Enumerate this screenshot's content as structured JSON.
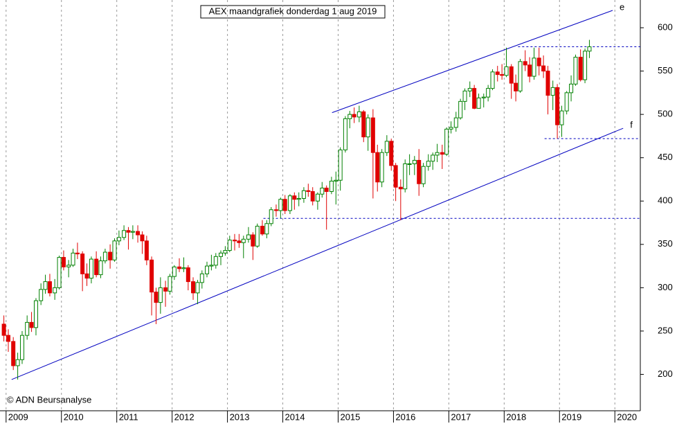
{
  "chart_data": {
    "type": "candlestick",
    "title": "AEX maandgrafiek donderdag 1 aug 2019",
    "copyright": "© ADN Beursanalyse",
    "up_color": "#008000",
    "down_color": "#e00000",
    "line_color": "#0000c0",
    "x": [
      2008.96,
      2009.04,
      2009.13,
      2009.21,
      2009.29,
      2009.38,
      2009.46,
      2009.54,
      2009.63,
      2009.71,
      2009.79,
      2009.88,
      2009.96,
      2010.04,
      2010.13,
      2010.21,
      2010.29,
      2010.38,
      2010.46,
      2010.54,
      2010.63,
      2010.71,
      2010.79,
      2010.88,
      2010.96,
      2011.04,
      2011.13,
      2011.21,
      2011.29,
      2011.38,
      2011.46,
      2011.54,
      2011.63,
      2011.71,
      2011.79,
      2011.88,
      2011.96,
      2012.04,
      2012.13,
      2012.21,
      2012.29,
      2012.38,
      2012.46,
      2012.54,
      2012.63,
      2012.71,
      2012.79,
      2012.88,
      2012.96,
      2013.04,
      2013.13,
      2013.21,
      2013.29,
      2013.38,
      2013.46,
      2013.54,
      2013.63,
      2013.71,
      2013.79,
      2013.88,
      2013.96,
      2014.04,
      2014.13,
      2014.21,
      2014.29,
      2014.38,
      2014.46,
      2014.54,
      2014.63,
      2014.71,
      2014.79,
      2014.88,
      2014.96,
      2015.04,
      2015.13,
      2015.21,
      2015.29,
      2015.38,
      2015.46,
      2015.54,
      2015.63,
      2015.71,
      2015.79,
      2015.88,
      2015.96,
      2016.04,
      2016.13,
      2016.21,
      2016.29,
      2016.38,
      2016.46,
      2016.54,
      2016.63,
      2016.71,
      2016.79,
      2016.88,
      2016.96,
      2017.04,
      2017.13,
      2017.21,
      2017.29,
      2017.38,
      2017.46,
      2017.54,
      2017.63,
      2017.71,
      2017.79,
      2017.88,
      2017.96,
      2018.04,
      2018.13,
      2018.21,
      2018.29,
      2018.38,
      2018.46,
      2018.54,
      2018.63,
      2018.71,
      2018.79,
      2018.88,
      2018.96,
      2019.04,
      2019.13,
      2019.21,
      2019.29,
      2019.38,
      2019.46,
      2019.54
    ],
    "open": [
      258,
      245,
      238,
      210,
      217,
      245,
      260,
      254,
      285,
      298,
      307,
      294,
      300,
      335,
      324,
      326,
      340,
      339,
      316,
      311,
      333,
      315,
      331,
      341,
      332,
      354,
      358,
      366,
      364,
      365,
      361,
      354,
      332,
      295,
      283,
      300,
      296,
      313,
      324,
      322,
      323,
      307,
      294,
      306,
      316,
      325,
      326,
      336,
      340,
      343,
      355,
      354,
      352,
      356,
      361,
      348,
      371,
      362,
      374,
      390,
      389,
      402,
      389,
      406,
      402,
      403,
      412,
      411,
      400,
      408,
      415,
      411,
      423,
      424,
      459,
      495,
      500,
      497,
      503,
      474,
      496,
      456,
      422,
      456,
      469,
      441,
      416,
      414,
      443,
      443,
      447,
      420,
      440,
      446,
      453,
      456,
      454,
      483,
      485,
      496,
      515,
      527,
      530,
      507,
      519,
      520,
      530,
      549,
      546,
      545,
      555,
      536,
      527,
      561,
      557,
      544,
      565,
      556,
      550,
      522,
      531,
      488,
      504,
      525,
      535,
      566,
      540,
      573
    ],
    "high": [
      268,
      252,
      243,
      225,
      250,
      268,
      272,
      288,
      305,
      315,
      316,
      310,
      337,
      343,
      332,
      345,
      352,
      342,
      328,
      336,
      342,
      336,
      345,
      350,
      357,
      366,
      372,
      370,
      372,
      372,
      365,
      360,
      336,
      300,
      312,
      308,
      316,
      326,
      334,
      335,
      326,
      312,
      309,
      320,
      330,
      338,
      340,
      343,
      348,
      360,
      362,
      362,
      360,
      370,
      364,
      374,
      378,
      378,
      393,
      396,
      404,
      407,
      408,
      410,
      410,
      416,
      420,
      416,
      410,
      422,
      418,
      428,
      434,
      462,
      498,
      504,
      508,
      510,
      505,
      500,
      506,
      465,
      460,
      476,
      472,
      444,
      425,
      448,
      454,
      452,
      460,
      444,
      454,
      456,
      466,
      465,
      485,
      492,
      503,
      518,
      530,
      538,
      534,
      524,
      524,
      534,
      552,
      556,
      558,
      577,
      558,
      546,
      564,
      574,
      566,
      577,
      577,
      568,
      556,
      539,
      535,
      510,
      527,
      545,
      569,
      575,
      576,
      586
    ],
    "low": [
      238,
      226,
      205,
      194,
      212,
      240,
      249,
      245,
      280,
      293,
      290,
      286,
      298,
      320,
      312,
      324,
      333,
      296,
      302,
      305,
      312,
      311,
      328,
      322,
      330,
      349,
      355,
      344,
      356,
      352,
      339,
      326,
      268,
      258,
      270,
      278,
      292,
      309,
      318,
      318,
      297,
      286,
      281,
      299,
      312,
      320,
      322,
      326,
      337,
      341,
      343,
      346,
      334,
      352,
      332,
      346,
      360,
      357,
      371,
      382,
      380,
      385,
      385,
      390,
      394,
      398,
      405,
      395,
      390,
      404,
      367,
      408,
      396,
      412,
      456,
      484,
      490,
      491,
      468,
      458,
      403,
      411,
      416,
      452,
      435,
      400,
      378,
      410,
      430,
      430,
      406,
      416,
      435,
      436,
      445,
      437,
      452,
      478,
      480,
      494,
      505,
      520,
      506,
      507,
      508,
      515,
      528,
      538,
      540,
      543,
      518,
      515,
      525,
      550,
      537,
      540,
      545,
      542,
      500,
      505,
      472,
      474,
      500,
      515,
      533,
      538,
      536,
      565
    ],
    "close": [
      245,
      238,
      210,
      217,
      245,
      260,
      254,
      285,
      298,
      307,
      294,
      300,
      335,
      324,
      326,
      340,
      339,
      316,
      311,
      333,
      315,
      331,
      341,
      332,
      354,
      358,
      366,
      364,
      365,
      361,
      354,
      332,
      295,
      283,
      300,
      296,
      313,
      324,
      322,
      323,
      307,
      294,
      306,
      316,
      325,
      326,
      336,
      340,
      343,
      355,
      354,
      352,
      356,
      361,
      348,
      371,
      362,
      374,
      390,
      389,
      402,
      389,
      406,
      402,
      403,
      412,
      411,
      400,
      408,
      415,
      411,
      423,
      424,
      459,
      495,
      500,
      497,
      503,
      474,
      496,
      456,
      422,
      456,
      469,
      441,
      416,
      414,
      443,
      443,
      447,
      420,
      440,
      446,
      453,
      456,
      454,
      483,
      485,
      496,
      515,
      527,
      530,
      507,
      519,
      520,
      530,
      549,
      546,
      545,
      555,
      536,
      527,
      561,
      557,
      544,
      565,
      556,
      550,
      522,
      531,
      488,
      504,
      525,
      535,
      566,
      540,
      573,
      578
    ],
    "xlim": [
      2008.89,
      2020.46
    ],
    "xticks": [
      2009,
      2010,
      2011,
      2012,
      2013,
      2014,
      2015,
      2016,
      2017,
      2018,
      2019,
      2020
    ],
    "ylim": [
      158,
      632
    ],
    "yticks": [
      200,
      250,
      300,
      350,
      400,
      450,
      500,
      550,
      600
    ],
    "trendlines": [
      {
        "label": "e",
        "x": [
          2014.89,
          2019.96
        ],
        "y": [
          502,
          620
        ]
      },
      {
        "label": "f",
        "x": [
          2009.1,
          2020.15
        ],
        "y": [
          194,
          484
        ]
      }
    ],
    "hlines": [
      {
        "value": 578,
        "x_start": 2018.25
      },
      {
        "value": 472,
        "x_start": 2018.73
      },
      {
        "value": 380,
        "x_start": 2013.65
      }
    ]
  }
}
